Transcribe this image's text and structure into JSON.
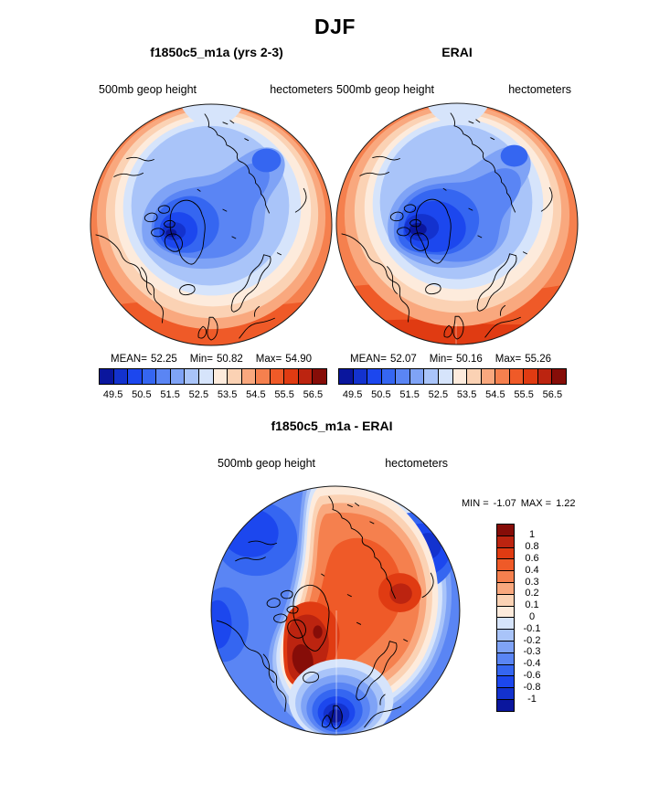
{
  "page_title": "DJF",
  "palette": {
    "colors16": [
      "#0A169D",
      "#1332CE",
      "#1C47EE",
      "#3566F1",
      "#5A85F4",
      "#7FA3F6",
      "#A9C4F9",
      "#D6E4FB",
      "#FDEBDC",
      "#FBD2B4",
      "#F9A87E",
      "#F5804E",
      "#EF5A28",
      "#E03B12",
      "#BC2410",
      "#860D08"
    ]
  },
  "top_left_panel": {
    "title": "f1850c5_m1a (yrs 2-3)",
    "field": "500mb geop height",
    "units": "hectometers",
    "stats": {
      "mean_label": "MEAN=",
      "mean": "52.25",
      "min_label": "Min=",
      "min": "50.82",
      "max_label": "Max=",
      "max": "54.90"
    }
  },
  "top_right_panel": {
    "title": "ERAI",
    "field": "500mb geop height",
    "units": "hectometers",
    "stats": {
      "mean_label": "MEAN=",
      "mean": "52.07",
      "min_label": "Min=",
      "min": "50.16",
      "max_label": "Max=",
      "max": "55.26"
    }
  },
  "shared_colorbar": {
    "tick_labels": [
      "49.5",
      "50.5",
      "51.5",
      "52.5",
      "53.5",
      "54.5",
      "55.5",
      "56.5"
    ]
  },
  "diff_panel": {
    "title": "f1850c5_m1a - ERAI",
    "field": "500mb geop height",
    "units": "hectometers",
    "min_label": "MIN =",
    "min_value": "-1.07",
    "max_label": "MAX =",
    "max_value": "1.22",
    "colorbar_tick_labels": [
      "1",
      "0.8",
      "0.6",
      "0.4",
      "0.3",
      "0.2",
      "0.1",
      "0",
      "-0.1",
      "-0.2",
      "-0.3",
      "-0.4",
      "-0.6",
      "-0.8",
      "-1"
    ]
  },
  "chart_data": [
    {
      "type": "heatmap",
      "variant": "polar_stereographic_filled_contour",
      "season": "DJF",
      "title": "f1850c5_m1a (yrs 2-3)",
      "field": "500mb geop height",
      "units": "hectometers",
      "mean": 52.25,
      "min": 50.82,
      "max": 54.9,
      "levels": [
        49.5,
        50,
        50.5,
        51,
        51.5,
        52,
        52.5,
        53,
        53.5,
        54,
        54.5,
        55,
        55.5,
        56,
        56.5
      ],
      "tick_labels": [
        49.5,
        50.5,
        51.5,
        52.5,
        53.5,
        54.5,
        55.5,
        56.5
      ],
      "legend_position": "bottom",
      "pattern": "low geopotential (blue) centered over Canadian Arctic Archipelago extending across Arctic basin; high values (orange/red) ring at mid-latitude edges, strongest at bottom (Atlantic/Europe) edge"
    },
    {
      "type": "heatmap",
      "variant": "polar_stereographic_filled_contour",
      "season": "DJF",
      "title": "ERAI",
      "field": "500mb geop height",
      "units": "hectometers",
      "mean": 52.07,
      "min": 50.16,
      "max": 55.26,
      "levels": [
        49.5,
        50,
        50.5,
        51,
        51.5,
        52,
        52.5,
        53,
        53.5,
        54,
        54.5,
        55,
        55.5,
        56,
        56.5
      ],
      "tick_labels": [
        49.5,
        50.5,
        51.5,
        52.5,
        53.5,
        54.5,
        55.5,
        56.5
      ],
      "legend_position": "bottom",
      "pattern": "deeper polar low than model, darkest blues over Canadian Archipelago and central Arctic; stronger orange ring at edges"
    },
    {
      "type": "heatmap",
      "variant": "polar_stereographic_filled_contour",
      "season": "DJF",
      "title": "f1850c5_m1a - ERAI",
      "field": "500mb geop height",
      "units": "hectometers",
      "min": -1.07,
      "max": 1.22,
      "levels": [
        -1,
        -0.8,
        -0.6,
        -0.4,
        -0.3,
        -0.2,
        -0.1,
        0,
        0.1,
        0.2,
        0.3,
        0.4,
        0.6,
        0.8,
        1
      ],
      "legend_position": "right",
      "pattern": "positive differences (red) over central Arctic, Canada and Greenland with maximum over Baffin/Hudson region; negative (blue) at map edges with minimum over North Sea / UK sector"
    }
  ]
}
